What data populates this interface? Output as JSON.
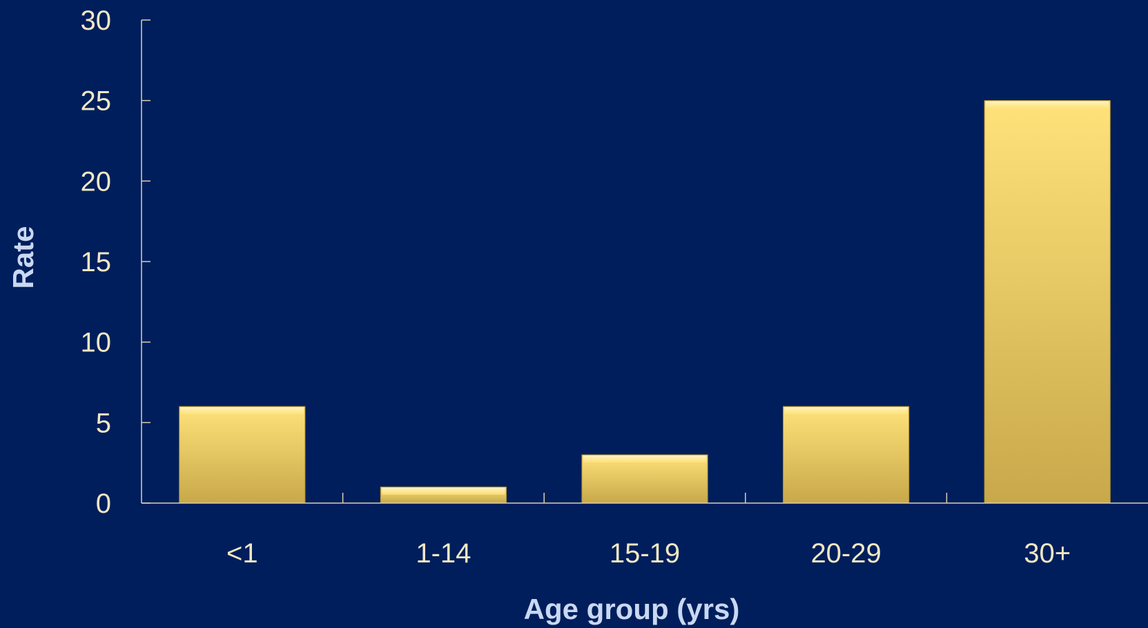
{
  "chart_data": {
    "type": "bar",
    "title": "",
    "xlabel": "Age group (yrs)",
    "ylabel": "Rate",
    "categories": [
      "<1",
      "1-14",
      "15-19",
      "20-29",
      "30+"
    ],
    "values": [
      6,
      1,
      3,
      6,
      25
    ],
    "ylim": [
      0,
      30
    ],
    "yticks": [
      0,
      5,
      10,
      15,
      20,
      25,
      30
    ],
    "ytick_labels": [
      "0",
      "5",
      "10",
      "15",
      "20",
      "25",
      "30"
    ],
    "grid": false,
    "legend": "none",
    "colors": {
      "background": "#001e5c",
      "bar_light": "#ffe27a",
      "bar_dark": "#c8a84a",
      "axis": "#d9d2b0",
      "tick_text": "#f1e8c2",
      "title_text": "#c9d8f2"
    }
  }
}
